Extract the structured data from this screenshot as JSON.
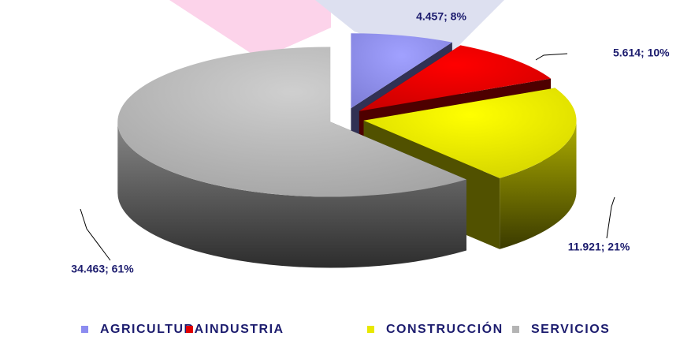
{
  "chart_data": {
    "type": "pie3d",
    "categories": [
      "AGRICULTURA",
      "INDUSTRIA",
      "CONSTRUCCIÓN",
      "SERVICIOS"
    ],
    "values": [
      4457,
      5614,
      11921,
      34463
    ],
    "value_labels": [
      "4.457; 8%",
      "5.614; 10%",
      "11.921; 21%",
      "34.463; 61%"
    ],
    "colors": [
      "#8c8cf0",
      "#e00000",
      "#e8e800",
      "#b4b4b4"
    ],
    "legend": "bottom"
  }
}
